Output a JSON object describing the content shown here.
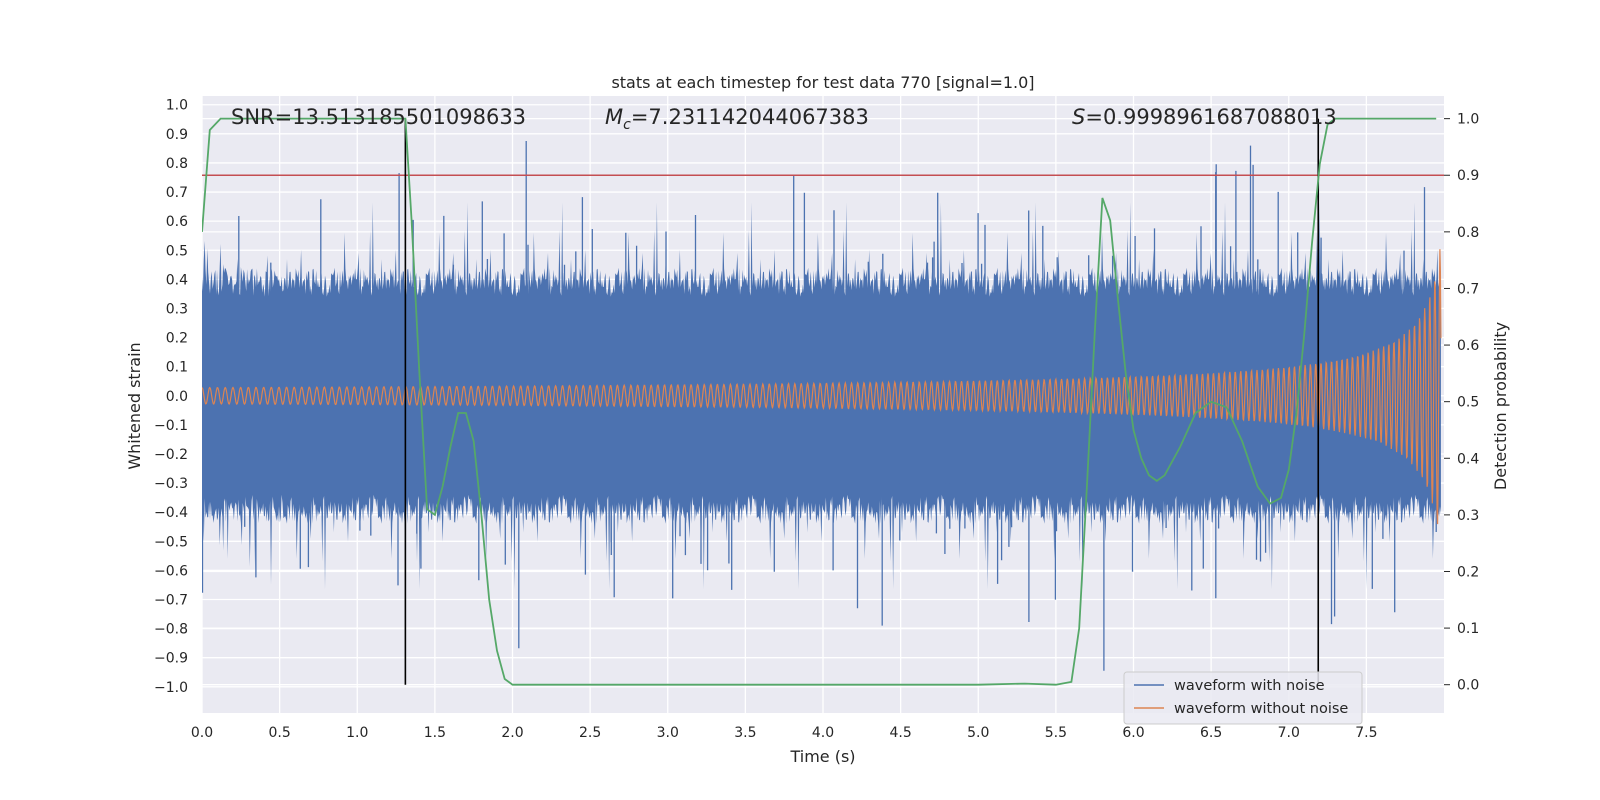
{
  "chart_data": {
    "type": "line",
    "title": "stats at each timestep for test data 770 [signal=1.0]",
    "xlabel": "Time (s)",
    "ylabel_left": "Whitened strain",
    "ylabel_right": "Detection probability",
    "xlim": [
      0.0,
      8.0
    ],
    "ylim_left": [
      -1.09,
      1.03
    ],
    "ylim_right": [
      -0.05,
      1.04
    ],
    "x_ticks": [
      "0.0",
      "0.5",
      "1.0",
      "1.5",
      "2.0",
      "2.5",
      "3.0",
      "3.5",
      "4.0",
      "4.5",
      "5.0",
      "5.5",
      "6.0",
      "6.5",
      "7.0",
      "7.5"
    ],
    "y_left_ticks": [
      "1.0",
      "0.9",
      "0.8",
      "0.7",
      "0.6",
      "0.5",
      "0.4",
      "0.3",
      "0.2",
      "0.1",
      "0.0",
      "−0.1",
      "−0.2",
      "−0.3",
      "−0.4",
      "−0.5",
      "−0.6",
      "−0.7",
      "−0.8",
      "−0.9",
      "−1.0"
    ],
    "y_right_ticks": [
      "1.0",
      "0.9",
      "0.8",
      "0.7",
      "0.6",
      "0.5",
      "0.4",
      "0.3",
      "0.2",
      "0.1",
      "0.0"
    ],
    "annotations": {
      "snr": "SNR=13.513185501098633",
      "mc_symbol": "M",
      "mc_sub": "c",
      "mc_value": "=7.231142044067383",
      "s_symbol": "S",
      "s_value": "=0.9998961687088013"
    },
    "threshold": {
      "value": 0.9,
      "color": "#c44e52"
    },
    "vertical_lines": [
      1.31,
      7.19
    ],
    "series": [
      {
        "name": "waveform with noise",
        "axis": "left",
        "color": "#4c72b0",
        "note": "noisy whitened strain, dense band roughly -0.42..0.42 with spikes up to 0.93 / down to -0.99"
      },
      {
        "name": "waveform without noise",
        "axis": "left",
        "color": "#dd8452",
        "note": "chirp signal, amplitude growing from ~0.03 to ~0.6 near t=8.0"
      },
      {
        "name": "detection probability",
        "axis": "right",
        "color": "#55a868",
        "x": [
          0.0,
          0.05,
          0.12,
          0.2,
          0.4,
          0.8,
          1.0,
          1.2,
          1.31,
          1.35,
          1.4,
          1.45,
          1.5,
          1.55,
          1.6,
          1.65,
          1.7,
          1.75,
          1.8,
          1.85,
          1.9,
          1.95,
          2.0,
          2.5,
          3.0,
          3.5,
          4.0,
          4.5,
          5.0,
          5.3,
          5.5,
          5.6,
          5.65,
          5.7,
          5.75,
          5.8,
          5.85,
          5.9,
          5.95,
          6.0,
          6.05,
          6.1,
          6.15,
          6.2,
          6.3,
          6.4,
          6.5,
          6.6,
          6.7,
          6.8,
          6.88,
          6.95,
          7.0,
          7.05,
          7.1,
          7.15,
          7.2,
          7.25,
          7.3,
          7.5,
          7.8,
          7.95
        ],
        "y": [
          0.8,
          0.98,
          1.0,
          1.0,
          1.0,
          1.0,
          1.0,
          1.0,
          1.0,
          0.82,
          0.55,
          0.31,
          0.3,
          0.35,
          0.42,
          0.48,
          0.48,
          0.43,
          0.3,
          0.15,
          0.06,
          0.01,
          0.0,
          0.0,
          0.0,
          0.0,
          0.0,
          0.0,
          0.0,
          0.002,
          0.0,
          0.005,
          0.1,
          0.35,
          0.62,
          0.86,
          0.82,
          0.68,
          0.55,
          0.45,
          0.4,
          0.37,
          0.36,
          0.37,
          0.42,
          0.48,
          0.5,
          0.49,
          0.43,
          0.35,
          0.32,
          0.33,
          0.38,
          0.48,
          0.62,
          0.78,
          0.92,
          0.99,
          1.0,
          1.0,
          1.0,
          1.0
        ]
      }
    ],
    "legend": {
      "position": "lower right",
      "entries": [
        {
          "label": "waveform with noise",
          "color": "#4c72b0"
        },
        {
          "label": "waveform without noise",
          "color": "#dd8452"
        }
      ]
    },
    "style": {
      "background": "#eaeaf2",
      "grid": "#ffffff"
    }
  }
}
